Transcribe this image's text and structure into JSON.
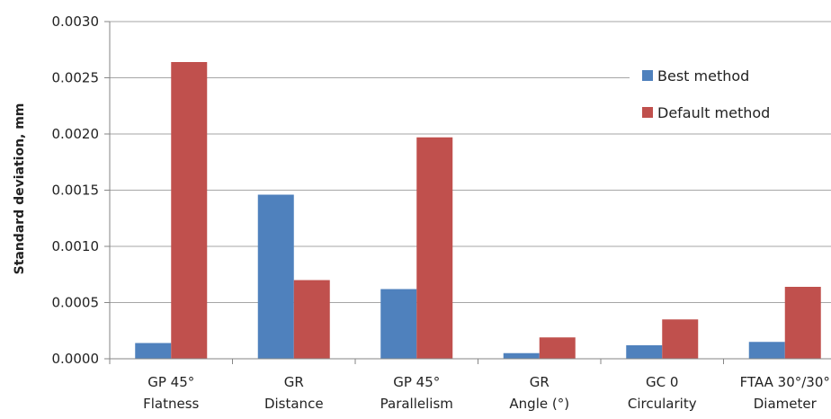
{
  "chart_data": {
    "type": "bar",
    "title": "",
    "xlabel": "",
    "ylabel": "Standard deviation, mm",
    "ylim": [
      0,
      0.003
    ],
    "yticks": [
      "0.0000",
      "0.0005",
      "0.0010",
      "0.0015",
      "0.0020",
      "0.0025",
      "0.0030"
    ],
    "grid": true,
    "legend_position": "top-right",
    "categories": [
      [
        "GP 45°",
        "Flatness"
      ],
      [
        "GR",
        "Distance"
      ],
      [
        "GP 45°",
        "Parallelism"
      ],
      [
        "GR",
        "Angle (°)"
      ],
      [
        "GC 0",
        "Circularity"
      ],
      [
        "FTAA 30°/30°",
        "Diameter"
      ]
    ],
    "series": [
      {
        "name": "Best method",
        "color": "#4F81BD",
        "values": [
          0.00014,
          0.00146,
          0.00062,
          5e-05,
          0.00012,
          0.00015
        ]
      },
      {
        "name": "Default method",
        "color": "#C0504D",
        "values": [
          0.00264,
          0.0007,
          0.00197,
          0.00019,
          0.00035,
          0.00064
        ]
      }
    ]
  }
}
